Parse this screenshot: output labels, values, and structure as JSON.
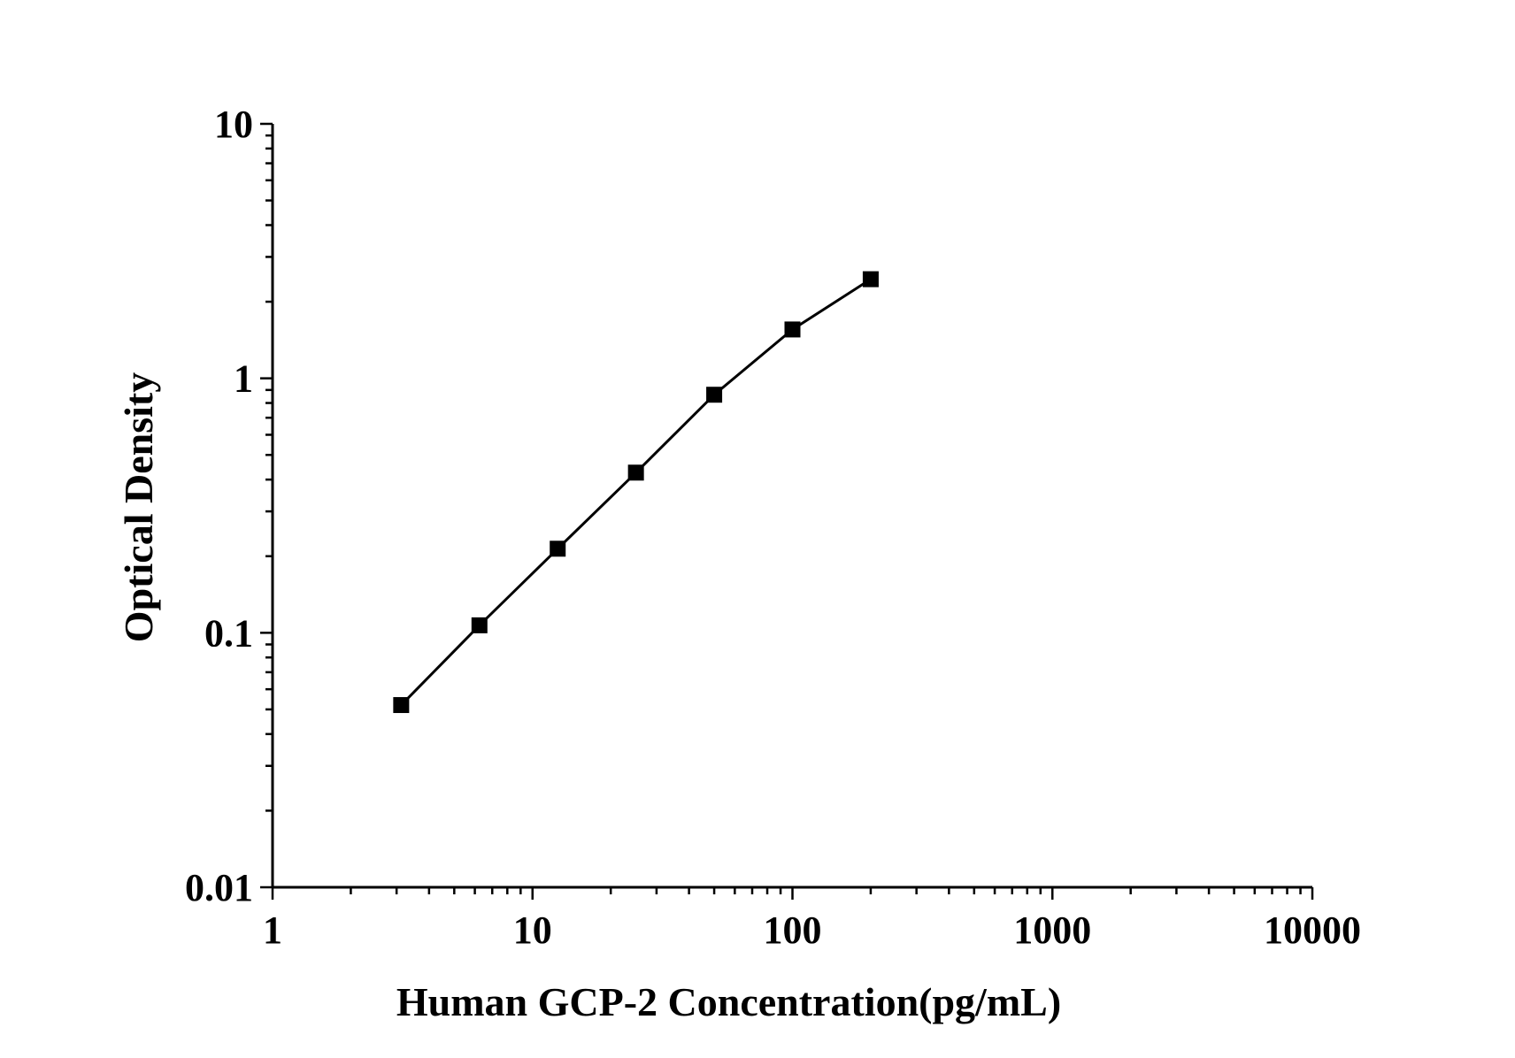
{
  "chart_data": {
    "type": "line",
    "x_scale": "log",
    "y_scale": "log",
    "xlabel": "Human GCP-2 Concentration(pg/mL)",
    "ylabel": "Optical Density",
    "xlim": [
      1,
      10000
    ],
    "ylim": [
      0.01,
      10
    ],
    "x_ticks": [
      "1",
      "10",
      "100",
      "1000",
      "10000"
    ],
    "y_ticks": [
      "0.01",
      "0.1",
      "1",
      "10"
    ],
    "grid": false,
    "legend": "none",
    "series": [
      {
        "marker": "square",
        "color": "#000000",
        "x": [
          3.125,
          6.25,
          12.5,
          25,
          50,
          100,
          200
        ],
        "y": [
          0.052,
          0.107,
          0.214,
          0.426,
          0.862,
          1.556,
          2.452
        ]
      }
    ]
  }
}
